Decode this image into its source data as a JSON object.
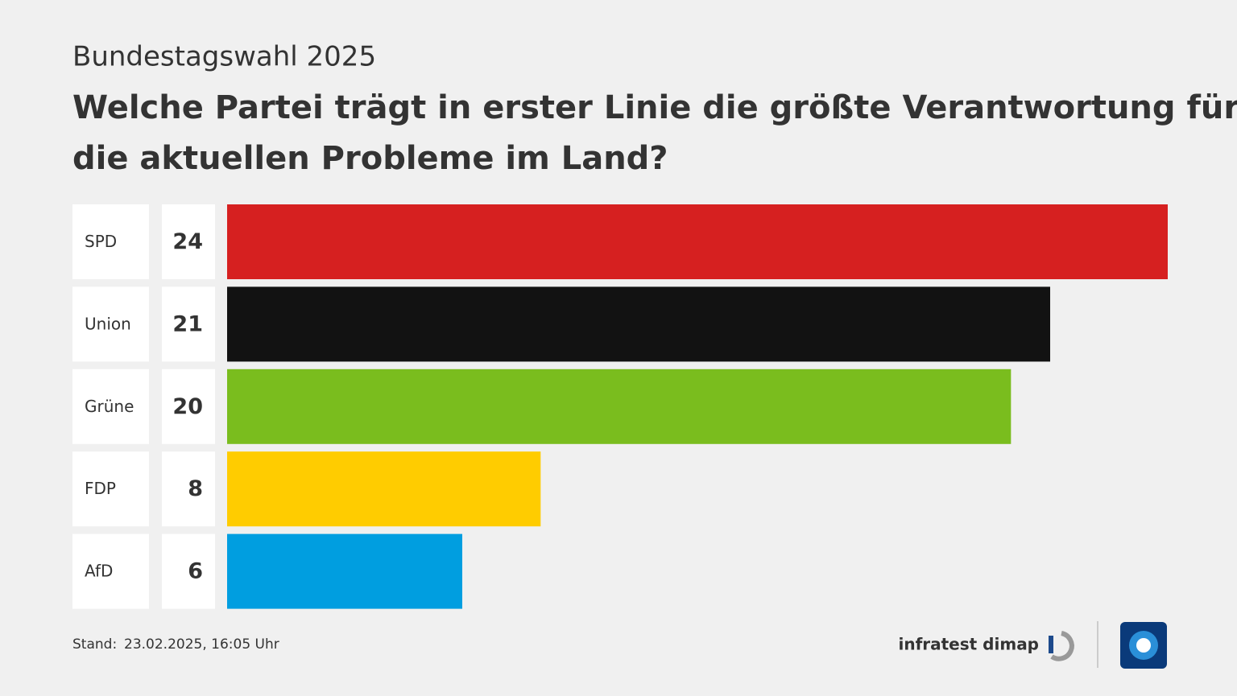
{
  "chart_data": {
    "type": "bar",
    "orientation": "horizontal",
    "subtitle": "Bundestagswahl 2025",
    "title": [
      "Welche Partei trägt in erster Linie die größte Verantwortung für",
      "die aktuellen Probleme im Land?"
    ],
    "categories": [
      "SPD",
      "Union",
      "Grüne",
      "FDP",
      "AfD"
    ],
    "values": [
      24,
      21,
      20,
      8,
      6
    ],
    "colors": [
      "#d62020",
      "#121212",
      "#7abd1e",
      "#ffcc00",
      "#009ee0"
    ],
    "xlim": [
      0,
      24
    ],
    "footer": {
      "label": "Stand:",
      "date": "23.02.2025, 16:05 Uhr"
    },
    "source": "infratest dimap"
  }
}
